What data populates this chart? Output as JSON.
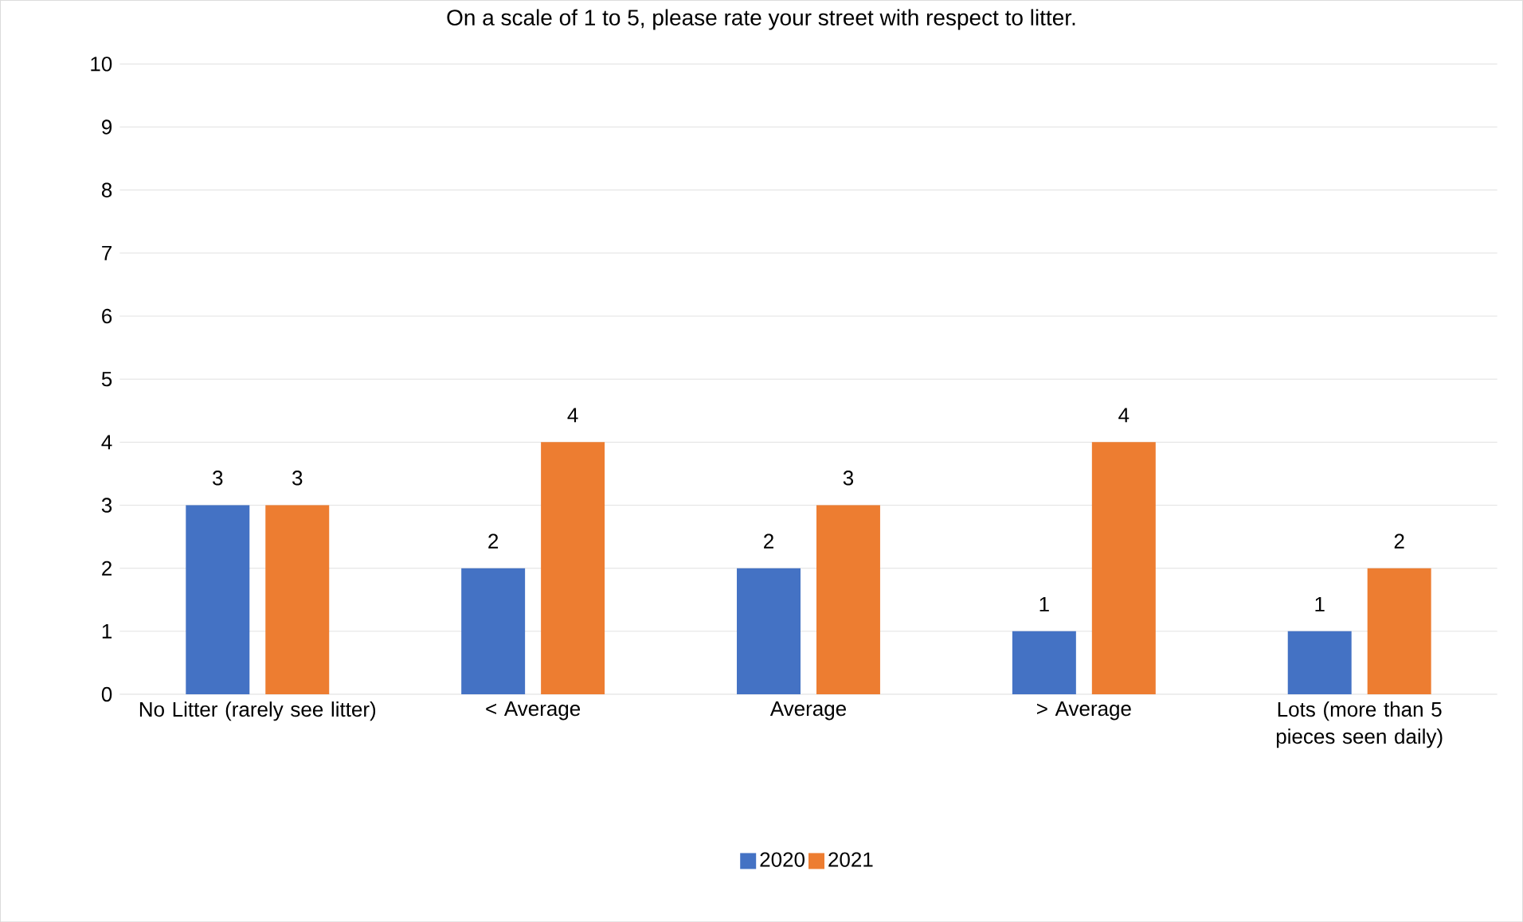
{
  "chart_data": {
    "type": "bar",
    "title": "On a scale of 1 to 5, please rate your street with respect to litter.",
    "categories": [
      "No Litter (rarely see litter)",
      "< Average",
      "Average",
      "> Average",
      "Lots (more than 5 pieces seen daily)"
    ],
    "series": [
      {
        "name": "2020",
        "color": "#4472c4",
        "values": [
          3,
          2,
          2,
          1,
          1
        ]
      },
      {
        "name": "2021",
        "color": "#ed7d31",
        "values": [
          3,
          4,
          3,
          4,
          2
        ]
      }
    ],
    "ylim": [
      0,
      10
    ],
    "yticks": [
      0,
      1,
      2,
      3,
      4,
      5,
      6,
      7,
      8,
      9,
      10
    ],
    "grid": "y",
    "legend": "bottom",
    "data_labels": true
  }
}
